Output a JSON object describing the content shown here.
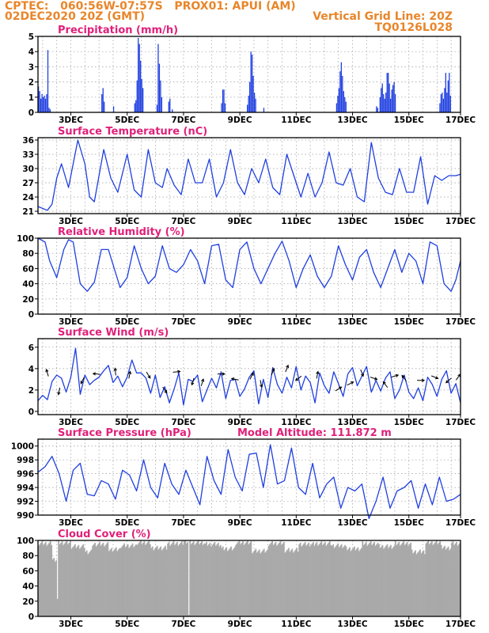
{
  "header": {
    "line1_left": "CPTEC:   060:56W-07:57S   PROX01: APUI (AM)",
    "line2_left": "02DEC2020 20Z (GMT)",
    "line2_right": "Vertical Grid Line: 20Z",
    "line3_right": "TQ0126L028"
  },
  "colors": {
    "header": "#e8862a",
    "title": "#e0207a",
    "series": "#1f3fe0",
    "cloud": "#a9a9a9",
    "arrow": "#000000"
  },
  "chart_data": [
    {
      "id": "precip",
      "type": "bar",
      "title": "Precipitation (mm/h)",
      "ylim": [
        0,
        5
      ],
      "yticks": [
        0,
        1,
        2,
        3,
        4,
        5
      ],
      "xlim": [
        0,
        360
      ],
      "xtick_labels": [
        "3DEC",
        "5DEC",
        "7DEC",
        "9DEC",
        "11DEC",
        "13DEC",
        "15DEC",
        "17DEC"
      ],
      "xtick_hours": [
        28,
        76,
        124,
        172,
        220,
        268,
        316,
        364
      ],
      "bars": [
        [
          0,
          1.7
        ],
        [
          1,
          1.4
        ],
        [
          2,
          0.9
        ],
        [
          3,
          1.2
        ],
        [
          4,
          1.0
        ],
        [
          5,
          1.1
        ],
        [
          6,
          0.9
        ],
        [
          7,
          1.2
        ],
        [
          8,
          4.1
        ],
        [
          9,
          0.3
        ],
        [
          10,
          0.2
        ],
        [
          54,
          1.2
        ],
        [
          55,
          1.6
        ],
        [
          56,
          0.7
        ],
        [
          64,
          0.4
        ],
        [
          82,
          0.6
        ],
        [
          83,
          0.8
        ],
        [
          84,
          2.1
        ],
        [
          85,
          4.9
        ],
        [
          86,
          4.5
        ],
        [
          87,
          3.4
        ],
        [
          88,
          2.2
        ],
        [
          89,
          1.6
        ],
        [
          101,
          0.5
        ],
        [
          102,
          4.5
        ],
        [
          103,
          3.2
        ],
        [
          104,
          2.1
        ],
        [
          105,
          1.0
        ],
        [
          111,
          0.7
        ],
        [
          112,
          0.9
        ],
        [
          114,
          0.2
        ],
        [
          156,
          0.6
        ],
        [
          157,
          1.5
        ],
        [
          158,
          1.5
        ],
        [
          159,
          0.6
        ],
        [
          178,
          0.5
        ],
        [
          179,
          1.1
        ],
        [
          180,
          2.0
        ],
        [
          181,
          4.0
        ],
        [
          182,
          3.8
        ],
        [
          183,
          2.4
        ],
        [
          184,
          1.3
        ],
        [
          185,
          0.9
        ],
        [
          192,
          0.3
        ],
        [
          254,
          0.6
        ],
        [
          255,
          1.1
        ],
        [
          256,
          1.6
        ],
        [
          257,
          2.7
        ],
        [
          258,
          3.3
        ],
        [
          259,
          2.4
        ],
        [
          260,
          1.4
        ],
        [
          261,
          1.0
        ],
        [
          262,
          0.7
        ],
        [
          288,
          0.4
        ],
        [
          289,
          0.3
        ],
        [
          291,
          1.0
        ],
        [
          292,
          1.6
        ],
        [
          293,
          1.9
        ],
        [
          294,
          1.2
        ],
        [
          295,
          0.9
        ],
        [
          296,
          1.3
        ],
        [
          297,
          2.6
        ],
        [
          298,
          2.6
        ],
        [
          299,
          1.9
        ],
        [
          300,
          0.9
        ],
        [
          301,
          1.5
        ],
        [
          302,
          1.8
        ],
        [
          303,
          2.0
        ],
        [
          304,
          1.2
        ],
        [
          342,
          0.6
        ],
        [
          343,
          1.2
        ],
        [
          344,
          1.3
        ],
        [
          345,
          0.9
        ],
        [
          346,
          1.6
        ],
        [
          347,
          2.6
        ],
        [
          348,
          1.3
        ],
        [
          349,
          2.1
        ],
        [
          350,
          2.6
        ],
        [
          351,
          1.1
        ]
      ]
    },
    {
      "id": "temp",
      "type": "line",
      "title": "Surface Temperature (nC)",
      "ylim": [
        20.5,
        36.5
      ],
      "yticks": [
        21,
        24,
        27,
        30,
        33,
        36
      ],
      "xlim": [
        0,
        360
      ],
      "xtick_labels": [
        "3DEC",
        "5DEC",
        "7DEC",
        "9DEC",
        "11DEC",
        "13DEC",
        "15DEC",
        "17DEC"
      ],
      "xtick_hours": [
        28,
        76,
        124,
        172,
        220,
        268,
        316,
        364
      ],
      "x": [
        0,
        8,
        12,
        16,
        20,
        26,
        34,
        40,
        44,
        48,
        56,
        62,
        68,
        76,
        82,
        88,
        94,
        100,
        106,
        110,
        116,
        122,
        128,
        134,
        140,
        146,
        152,
        158,
        164,
        170,
        176,
        182,
        188,
        194,
        200,
        206,
        212,
        218,
        224,
        230,
        236,
        242,
        248,
        254,
        260,
        266,
        272,
        278,
        284,
        290,
        296,
        302,
        308,
        314,
        320,
        326,
        332,
        338,
        344,
        350,
        356,
        360
      ],
      "y": [
        22,
        21.2,
        22.5,
        28,
        31,
        26,
        36,
        31,
        24,
        23,
        34,
        28,
        25,
        33,
        25.5,
        24,
        34,
        27,
        26,
        30,
        26.5,
        24.5,
        32,
        27,
        27,
        32,
        24,
        27,
        34,
        27,
        24.5,
        30,
        27,
        32,
        26,
        24.5,
        33,
        28.5,
        24,
        29,
        24,
        27,
        33.5,
        27,
        26.5,
        30,
        24,
        23,
        35.5,
        28,
        25,
        24.5,
        30,
        25,
        25,
        32.5,
        22.5,
        28.5,
        27.5,
        28.5,
        28.5,
        28.8
      ]
    },
    {
      "id": "rh",
      "type": "line",
      "title": "Relative Humidity (%)",
      "ylim": [
        0,
        100
      ],
      "yticks": [
        0,
        20,
        40,
        60,
        80,
        100
      ],
      "xlim": [
        0,
        360
      ],
      "xtick_labels": [
        "3DEC",
        "5DEC",
        "7DEC",
        "9DEC",
        "11DEC",
        "13DEC",
        "15DEC",
        "17DEC"
      ],
      "xtick_hours": [
        28,
        76,
        124,
        172,
        220,
        268,
        316,
        364
      ],
      "x": [
        0,
        6,
        10,
        16,
        22,
        26,
        30,
        36,
        42,
        48,
        54,
        60,
        66,
        70,
        76,
        82,
        88,
        94,
        100,
        106,
        112,
        118,
        124,
        130,
        136,
        142,
        148,
        154,
        160,
        166,
        172,
        178,
        184,
        190,
        196,
        202,
        208,
        214,
        220,
        226,
        232,
        238,
        244,
        250,
        256,
        262,
        268,
        274,
        280,
        286,
        292,
        298,
        304,
        310,
        316,
        322,
        328,
        334,
        340,
        346,
        352,
        356,
        360
      ],
      "y": [
        100,
        95,
        70,
        48,
        85,
        98,
        95,
        40,
        30,
        42,
        85,
        85,
        55,
        35,
        48,
        90,
        60,
        40,
        50,
        90,
        60,
        55,
        65,
        85,
        70,
        40,
        90,
        92,
        45,
        35,
        85,
        95,
        60,
        40,
        60,
        80,
        96,
        70,
        35,
        60,
        78,
        50,
        35,
        50,
        90,
        65,
        45,
        75,
        85,
        55,
        35,
        60,
        85,
        55,
        80,
        70,
        40,
        95,
        90,
        40,
        30,
        45,
        70
      ]
    },
    {
      "id": "wind",
      "type": "line",
      "title": "Surface Wind (m/s)",
      "ylim": [
        -0.3,
        6.8
      ],
      "yticks": [
        0,
        2,
        4,
        6
      ],
      "xlim": [
        0,
        360
      ],
      "xtick_labels": [
        "3DEC",
        "5DEC",
        "7DEC",
        "9DEC",
        "11DEC",
        "13DEC",
        "15DEC",
        "17DEC"
      ],
      "xtick_hours": [
        28,
        76,
        124,
        172,
        220,
        268,
        316,
        364
      ],
      "x": [
        0,
        4,
        8,
        12,
        16,
        20,
        24,
        28,
        32,
        36,
        40,
        44,
        48,
        52,
        56,
        60,
        64,
        68,
        72,
        76,
        80,
        84,
        88,
        92,
        96,
        100,
        104,
        108,
        112,
        116,
        120,
        124,
        128,
        132,
        136,
        140,
        144,
        148,
        152,
        156,
        160,
        164,
        168,
        172,
        176,
        180,
        184,
        188,
        192,
        196,
        200,
        204,
        208,
        212,
        216,
        220,
        224,
        228,
        232,
        236,
        240,
        244,
        248,
        252,
        256,
        260,
        264,
        268,
        272,
        276,
        280,
        284,
        288,
        292,
        296,
        300,
        304,
        308,
        312,
        316,
        320,
        324,
        328,
        332,
        336,
        340,
        344,
        348,
        352,
        356,
        360
      ],
      "y": [
        1,
        1.5,
        1.1,
        2.8,
        3.4,
        3.1,
        1.8,
        3.2,
        5.9,
        1.6,
        3.4,
        2.5,
        2.9,
        3.2,
        3.8,
        4.3,
        2.7,
        3.3,
        2.3,
        3.2,
        4.8,
        3.6,
        3.6,
        3.1,
        1.7,
        3.4,
        1.3,
        2.3,
        0.8,
        2.1,
        3.6,
        0.6,
        3.0,
        2.8,
        3.4,
        0.9,
        2.0,
        3.1,
        2.2,
        3.7,
        1.2,
        2.9,
        3.0,
        1.4,
        2.1,
        3.2,
        3.8,
        0.7,
        3.0,
        1.3,
        4.1,
        2.5,
        1.7,
        3.2,
        2.2,
        4.2,
        2.0,
        3.3,
        2.7,
        0.8,
        3.6,
        2.4,
        1.7,
        3.7,
        2.6,
        1.4,
        3.5,
        4.1,
        2.4,
        3.3,
        4.2,
        1.8,
        2.9,
        1.9,
        3.1,
        3.7,
        1.2,
        2.0,
        3.4,
        1.8,
        1.2,
        2.2,
        1.0,
        3.2,
        2.5,
        1.4,
        3.0,
        3.8,
        1.7,
        2.6,
        0.8
      ],
      "vectors": [
        [
          8,
          3.6,
          -0.3,
          1
        ],
        [
          18,
          1.9,
          -0.2,
          -1
        ],
        [
          38,
          2.9,
          -0.5,
          -1
        ],
        [
          50,
          3.5,
          -1,
          0.1
        ],
        [
          66,
          3.7,
          -0.1,
          1
        ],
        [
          78,
          3.4,
          0.2,
          1
        ],
        [
          94,
          3.4,
          0.6,
          -1
        ],
        [
          108,
          2.0,
          0.7,
          -1
        ],
        [
          118,
          3.7,
          1,
          0.1
        ],
        [
          132,
          2.8,
          -0.3,
          -1
        ],
        [
          140,
          2.7,
          0.3,
          1
        ],
        [
          156,
          3.5,
          1,
          0
        ],
        [
          168,
          3.0,
          -1,
          0.2
        ],
        [
          182,
          3.3,
          0.5,
          1
        ],
        [
          190,
          2.6,
          0.2,
          -1
        ],
        [
          200,
          3.7,
          0.4,
          1
        ],
        [
          212,
          4.0,
          0.4,
          1
        ],
        [
          222,
          3.1,
          -0.8,
          -0.6
        ],
        [
          238,
          3.4,
          0.2,
          1
        ],
        [
          256,
          2.1,
          0.8,
          0.5
        ],
        [
          266,
          2.6,
          0.8,
          0.4
        ],
        [
          276,
          3.6,
          0.4,
          -1
        ],
        [
          286,
          3.1,
          0.9,
          -0.3
        ],
        [
          296,
          2.5,
          -0.6,
          0.8
        ],
        [
          304,
          3.3,
          1,
          0.3
        ],
        [
          312,
          3.1,
          -0.6,
          0.8
        ],
        [
          326,
          2.9,
          1,
          0
        ],
        [
          338,
          3.2,
          1,
          -0.4
        ],
        [
          350,
          2.9,
          -0.7,
          -0.6
        ],
        [
          358,
          3.2,
          0.6,
          0.8
        ]
      ]
    },
    {
      "id": "pressure",
      "type": "line",
      "title": "Surface Pressure (hPa)",
      "annotation": "Model Altitude: 111.872 m",
      "ylim": [
        990,
        1001
      ],
      "yticks": [
        990,
        992,
        994,
        996,
        998,
        1000
      ],
      "xlim": [
        0,
        360
      ],
      "xtick_labels": [
        "3DEC",
        "5DEC",
        "7DEC",
        "9DEC",
        "11DEC",
        "13DEC",
        "15DEC",
        "17DEC"
      ],
      "xtick_hours": [
        28,
        76,
        124,
        172,
        220,
        268,
        316,
        364
      ],
      "x": [
        0,
        6,
        12,
        18,
        24,
        30,
        36,
        42,
        48,
        54,
        60,
        66,
        72,
        78,
        84,
        90,
        96,
        102,
        108,
        114,
        120,
        126,
        132,
        138,
        144,
        150,
        156,
        162,
        168,
        174,
        180,
        186,
        192,
        198,
        204,
        210,
        216,
        222,
        228,
        234,
        240,
        246,
        252,
        258,
        264,
        270,
        276,
        282,
        288,
        294,
        300,
        306,
        312,
        318,
        324,
        330,
        336,
        342,
        348,
        354,
        360
      ],
      "y": [
        996.2,
        997,
        998.5,
        996,
        992,
        996.5,
        997.5,
        993,
        992.8,
        995,
        994.5,
        992.3,
        996.5,
        995.8,
        993.5,
        998,
        994,
        992.5,
        997.5,
        994.5,
        993,
        996.5,
        994,
        991.5,
        998.5,
        995,
        993,
        999.5,
        995.5,
        993.5,
        998.8,
        999,
        994,
        1000.2,
        994.5,
        995,
        999.7,
        994,
        993,
        997.5,
        992.5,
        994.5,
        995.5,
        991,
        994,
        993.5,
        994.5,
        989.5,
        992,
        995.5,
        991,
        993.5,
        994,
        995,
        991,
        994.5,
        991.5,
        995.5,
        992,
        992.3,
        993
      ]
    },
    {
      "id": "cloud",
      "type": "bar",
      "title": "Cloud Cover (%)",
      "ylim": [
        0,
        100
      ],
      "yticks": [
        0,
        20,
        40,
        60,
        80,
        100
      ],
      "xlim": [
        0,
        360
      ],
      "xtick_labels": [
        "3DEC",
        "5DEC",
        "7DEC",
        "9DEC",
        "11DEC",
        "13DEC",
        "15DEC",
        "17DEC"
      ],
      "xtick_hours": [
        28,
        76,
        124,
        172,
        220,
        268,
        316,
        364
      ],
      "x_start": 0,
      "step": 1,
      "values_by_segment": [
        [
          0,
          12,
          96
        ],
        [
          12,
          16,
          75
        ],
        [
          16,
          17,
          22
        ],
        [
          17,
          28,
          97
        ],
        [
          28,
          40,
          92
        ],
        [
          40,
          46,
          85
        ],
        [
          46,
          60,
          95
        ],
        [
          60,
          70,
          88
        ],
        [
          70,
          84,
          93
        ],
        [
          84,
          96,
          97
        ],
        [
          96,
          110,
          90
        ],
        [
          110,
          124,
          96
        ],
        [
          124,
          128,
          99
        ],
        [
          128,
          129,
          2
        ],
        [
          129,
          142,
          97
        ],
        [
          142,
          156,
          95
        ],
        [
          156,
          168,
          89
        ],
        [
          168,
          182,
          97
        ],
        [
          182,
          196,
          86
        ],
        [
          196,
          210,
          96
        ],
        [
          210,
          222,
          87
        ],
        [
          222,
          236,
          95
        ],
        [
          236,
          250,
          96
        ],
        [
          250,
          262,
          93
        ],
        [
          262,
          276,
          89
        ],
        [
          276,
          290,
          96
        ],
        [
          290,
          304,
          92
        ],
        [
          304,
          318,
          96
        ],
        [
          318,
          330,
          85
        ],
        [
          330,
          344,
          97
        ],
        [
          344,
          352,
          90
        ],
        [
          352,
          360,
          96
        ]
      ]
    }
  ]
}
